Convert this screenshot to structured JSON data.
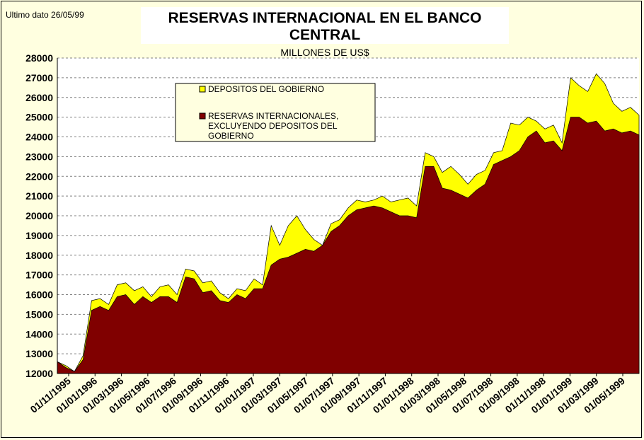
{
  "note": "Ultimo dato 26/05/99",
  "chart_data": {
    "type": "area",
    "title": "RESERVAS INTERNACIONAL EN EL BANCO CENTRAL",
    "subtitle": "MILLONES DE US$",
    "xlabel": "",
    "ylabel": "",
    "ylim": [
      12000,
      28000
    ],
    "y_ticks": [
      12000,
      13000,
      14000,
      15000,
      16000,
      17000,
      18000,
      19000,
      20000,
      21000,
      22000,
      23000,
      24000,
      25000,
      26000,
      27000,
      28000
    ],
    "x_tick_labels": [
      "01/11/1995",
      "01/01/1996",
      "01/03/1996",
      "01/05/1996",
      "01/07/1996",
      "01/09/1996",
      "01/11/1996",
      "01/01/1997",
      "01/03/1997",
      "01/05/1997",
      "01/07/1997",
      "01/09/1997",
      "01/11/1997",
      "01/01/1998",
      "01/03/1998",
      "01/05/1998",
      "01/07/1998",
      "01/09/1998",
      "01/11/1998",
      "01/01/1999",
      "01/03/1999",
      "01/05/1999"
    ],
    "x_range": [
      "01/11/1995",
      "26/05/1999"
    ],
    "grid": "horizontal-dashed",
    "legend_position": "upper-left",
    "series": [
      {
        "name": "DEPOSITOS DEL GOBIERNO",
        "color": "#FFFF00",
        "values": [
          12600,
          12400,
          12100,
          12900,
          15700,
          15800,
          15500,
          16500,
          16600,
          16200,
          16400,
          15900,
          16400,
          16500,
          16000,
          17300,
          17200,
          16600,
          16700,
          16100,
          15800,
          16300,
          16200,
          16800,
          16500,
          19500,
          18500,
          19500,
          20000,
          19300,
          18800,
          18500,
          19600,
          19800,
          20400,
          20800,
          20700,
          20800,
          21000,
          20700,
          20800,
          20900,
          20500,
          23200,
          23000,
          22200,
          22500,
          22100,
          21600,
          22100,
          22300,
          23200,
          23300,
          24700,
          24600,
          25000,
          24800,
          24400,
          24600,
          23700,
          27000,
          26600,
          26300,
          27200,
          26700,
          25700,
          25300,
          25500,
          25100
        ]
      },
      {
        "name": "RESERVAS INTERNACIONALES, EXCLUYENDO DEPOSITOS DEL GOBIERNO",
        "color": "#800000",
        "values": [
          12600,
          12300,
          12100,
          12700,
          15200,
          15400,
          15200,
          15900,
          16000,
          15500,
          15900,
          15600,
          15900,
          15900,
          15600,
          16900,
          16800,
          16100,
          16200,
          15700,
          15600,
          16000,
          15800,
          16300,
          16300,
          17500,
          17800,
          17900,
          18100,
          18300,
          18200,
          18500,
          19200,
          19500,
          20000,
          20300,
          20400,
          20500,
          20400,
          20200,
          20000,
          20000,
          19900,
          22500,
          22500,
          21400,
          21300,
          21100,
          20900,
          21300,
          21600,
          22600,
          22800,
          23000,
          23300,
          24000,
          24300,
          23700,
          23800,
          23300,
          25000,
          25000,
          24700,
          24800,
          24300,
          24400,
          24200,
          24300,
          24100
        ]
      }
    ]
  }
}
